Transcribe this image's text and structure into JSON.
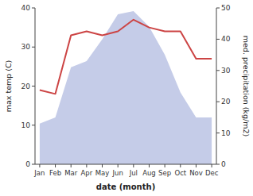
{
  "chart_data": {
    "type": "line",
    "xlabel": "date (month)",
    "ylabel": "max temp (C)",
    "y2label": "med. precipitation (kg/m2)",
    "categories": [
      "Jan",
      "Feb",
      "Mar",
      "Apr",
      "May",
      "Jun",
      "Jul",
      "Aug",
      "Sep",
      "Oct",
      "Nov",
      "Dec"
    ],
    "series": [
      {
        "type": "area",
        "axis": "y2",
        "color": "#c5cce8",
        "values": [
          13,
          15,
          31,
          33,
          40,
          48,
          49,
          44,
          35,
          23,
          15,
          15
        ]
      },
      {
        "type": "line",
        "color": "#cc4444",
        "values": [
          19,
          18,
          33,
          34,
          33,
          34,
          37,
          35,
          34,
          34,
          27,
          27
        ]
      }
    ],
    "ylim": [
      0,
      40
    ],
    "yticks": [
      0,
      10,
      20,
      30,
      40
    ],
    "y2lim": [
      0,
      50
    ],
    "y2ticks": [
      0,
      10,
      20,
      30,
      40,
      50
    ],
    "grid": false
  }
}
